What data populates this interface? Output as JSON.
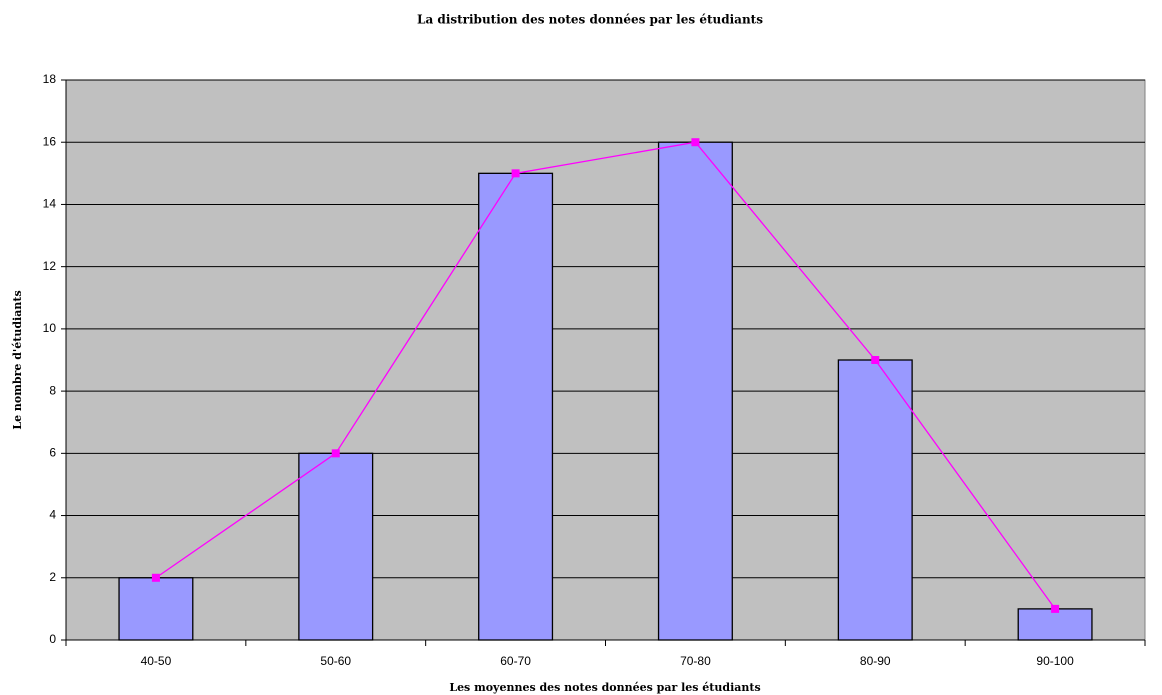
{
  "chart_data": {
    "type": "bar",
    "title": "La distribution des notes données par les étudiants",
    "x_label": "Les moyennes des notes données par les étudiants",
    "y_label": "Le nombre d'étudiants",
    "categories": [
      "40-50",
      "50-60",
      "60-70",
      "70-80",
      "80-90",
      "90-100"
    ],
    "series": [
      {
        "type": "bar",
        "color": "#9999ff",
        "values": [
          2,
          6,
          15,
          16,
          9,
          1
        ]
      },
      {
        "type": "line",
        "color": "#ff00ff",
        "values": [
          2,
          6,
          15,
          16,
          9,
          1
        ]
      }
    ],
    "ylim": [
      0,
      18
    ],
    "yticks": [
      0,
      2,
      4,
      6,
      8,
      10,
      12,
      14,
      16,
      18
    ],
    "grid": true,
    "background": "#c0c0c0"
  }
}
